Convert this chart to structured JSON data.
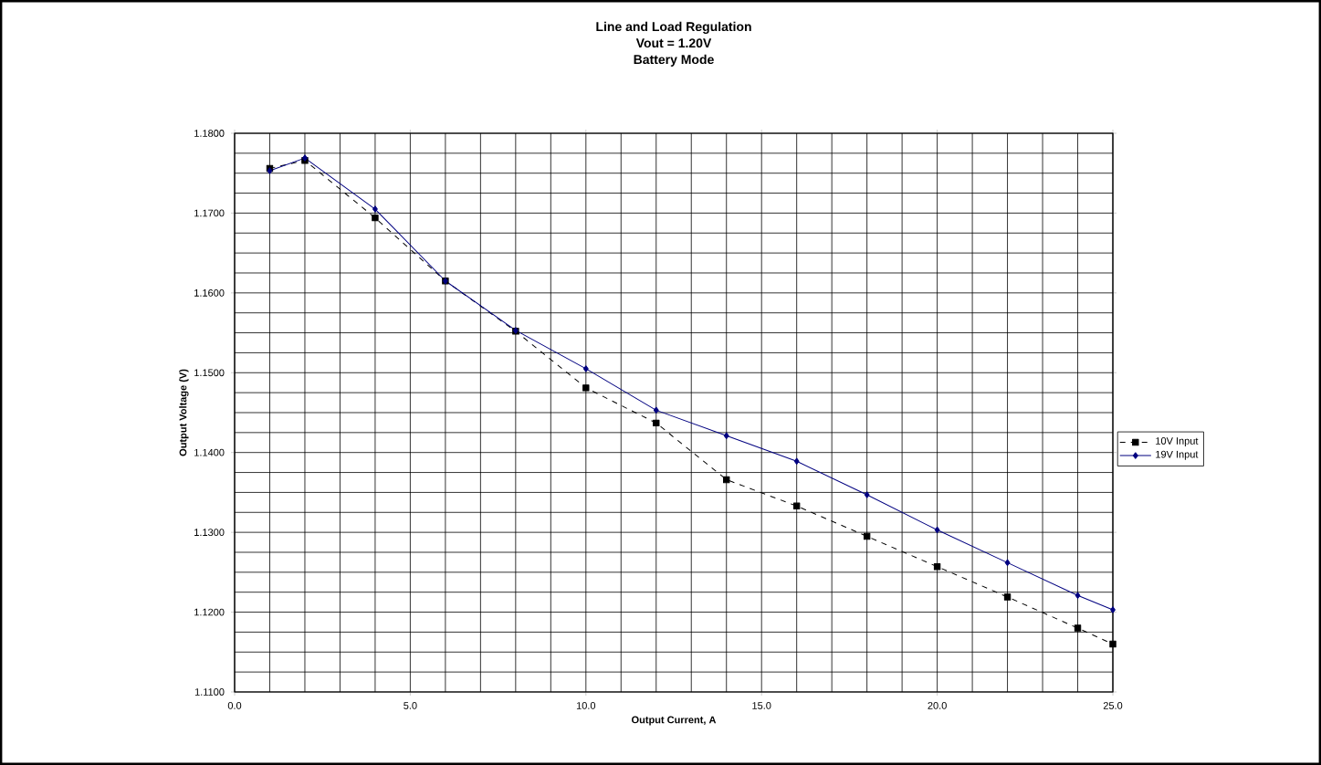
{
  "chart_data": {
    "type": "line",
    "title": "Line and Load Regulation",
    "subtitle": "Vout = 1.20V",
    "annotations": [
      "Battery Mode"
    ],
    "xlabel": "Output Current, A",
    "ylabel": "Output Voltage (V)",
    "x": [
      1,
      2,
      4,
      6,
      8,
      10,
      12,
      14,
      16,
      18,
      20,
      22,
      24,
      25
    ],
    "series": [
      {
        "name": "10V Input",
        "color": "#000000",
        "marker": "square",
        "line_style": "dashed",
        "values": [
          1.1756,
          1.1766,
          1.1694,
          1.1615,
          1.1552,
          1.1481,
          1.1437,
          1.1366,
          1.1333,
          1.1295,
          1.1257,
          1.1219,
          1.118,
          1.116
        ]
      },
      {
        "name": "19V Input",
        "color": "#000080",
        "marker": "diamond",
        "line_style": "solid",
        "values": [
          1.1753,
          1.1769,
          1.1705,
          1.1615,
          1.1553,
          1.1505,
          1.1453,
          1.1421,
          1.1389,
          1.1347,
          1.1303,
          1.1262,
          1.1221,
          1.1203
        ]
      }
    ],
    "xlim": [
      0,
      25
    ],
    "ylim": [
      1.11,
      1.18
    ],
    "xticks": [
      {
        "value": 0,
        "label": "0.0"
      },
      {
        "value": 5,
        "label": "5.0"
      },
      {
        "value": 10,
        "label": "10.0"
      },
      {
        "value": 15,
        "label": "15.0"
      },
      {
        "value": 20,
        "label": "20.0"
      },
      {
        "value": 25,
        "label": "25.0"
      }
    ],
    "yticks": [
      {
        "value": 1.11,
        "label": "1.1100"
      },
      {
        "value": 1.12,
        "label": "1.1200"
      },
      {
        "value": 1.13,
        "label": "1.1300"
      },
      {
        "value": 1.14,
        "label": "1.1400"
      },
      {
        "value": 1.15,
        "label": "1.1500"
      },
      {
        "value": 1.16,
        "label": "1.1600"
      },
      {
        "value": 1.17,
        "label": "1.1700"
      },
      {
        "value": 1.18,
        "label": "1.1800"
      }
    ],
    "grid": true,
    "legend": "right"
  }
}
